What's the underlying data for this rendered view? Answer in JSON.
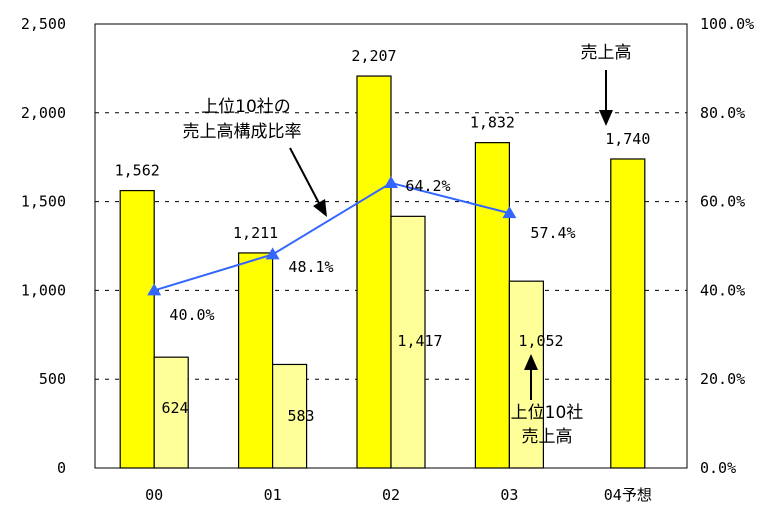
{
  "chart_data": {
    "type": "bar+line",
    "categories": [
      "00",
      "01",
      "02",
      "03",
      "04予想"
    ],
    "series": [
      {
        "values": [
          1562,
          1211,
          2207,
          1832,
          1740
        ],
        "labels": [
          "1,562",
          "1,211",
          "2,207",
          "1,832",
          "1,740"
        ],
        "axis": "left",
        "color": "#ffff00"
      },
      {
        "values": [
          624,
          583,
          1417,
          1052,
          null
        ],
        "labels": [
          "624",
          "583",
          "1,417",
          "1,052",
          ""
        ],
        "axis": "left",
        "color": "#ffff99"
      },
      {
        "values": [
          40.0,
          48.1,
          64.2,
          57.4,
          null
        ],
        "labels": [
          "40.0%",
          "48.1%",
          "64.2%",
          "57.4%",
          ""
        ],
        "axis": "right",
        "color": "#3366ff",
        "type": "line"
      }
    ],
    "y_left": {
      "ticks": [
        "0",
        "500",
        "1,000",
        "1,500",
        "2,000",
        "2,500"
      ],
      "range": [
        0,
        2500
      ]
    },
    "y_right": {
      "ticks": [
        "0.0%",
        "20.0%",
        "40.0%",
        "60.0%",
        "80.0%",
        "100.0%"
      ],
      "range": [
        0,
        100
      ]
    },
    "grid": "dashed horizontal",
    "annotations": {
      "sales": [
        "売上高"
      ],
      "ratio": [
        "上位10社の",
        "売上高構成比率"
      ],
      "top10": [
        "上位10社",
        "売上高"
      ]
    }
  }
}
